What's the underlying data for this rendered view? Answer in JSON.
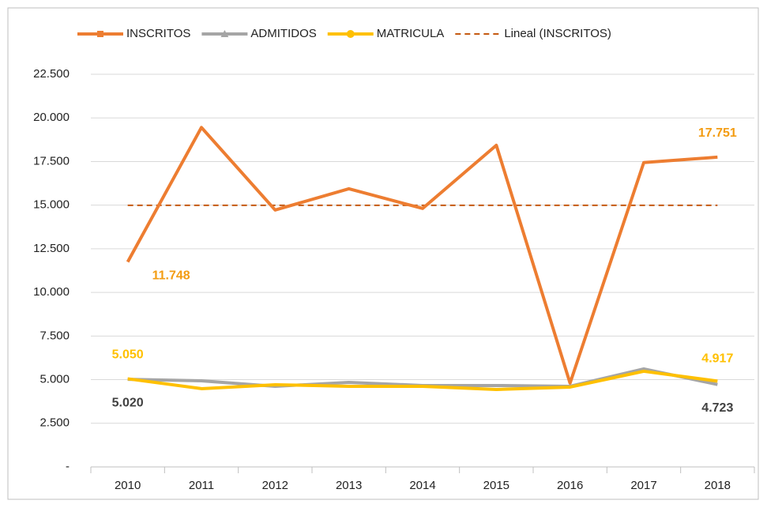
{
  "chart_data": {
    "type": "line",
    "categories": [
      "2010",
      "2011",
      "2012",
      "2013",
      "2014",
      "2015",
      "2016",
      "2017",
      "2018"
    ],
    "series": [
      {
        "name": "INSCRITOS",
        "color": "#ed7d31",
        "marker": "square",
        "values": [
          11748,
          19450,
          14720,
          15940,
          14810,
          18430,
          4800,
          17440,
          17751
        ],
        "value_labels": [
          "11.748",
          null,
          null,
          null,
          null,
          null,
          null,
          null,
          "17.751"
        ],
        "label_color": "#f39c12"
      },
      {
        "name": "ADMITIDOS",
        "color": "#a5a5a5",
        "marker": "triangle",
        "values": [
          5020,
          4937,
          4620,
          4846,
          4665,
          4665,
          4620,
          5616,
          4723
        ],
        "value_labels": [
          "5.020",
          null,
          null,
          null,
          null,
          null,
          null,
          null,
          "4.723"
        ],
        "label_color": "#404040"
      },
      {
        "name": "MATRICULA",
        "color": "#ffc000",
        "marker": "circle",
        "values": [
          5050,
          4484,
          4710,
          4620,
          4620,
          4438,
          4574,
          5480,
          4917
        ],
        "value_labels": [
          "5.050",
          null,
          null,
          null,
          null,
          null,
          null,
          null,
          "4.917"
        ],
        "label_color": "#ffc000"
      },
      {
        "name": "Lineal (INSCRITOS)",
        "color": "#c55a11",
        "dashed": true,
        "values": [
          14990,
          14990,
          14990,
          14990,
          14990,
          14990,
          14990,
          14990,
          14990
        ]
      }
    ],
    "ylim": [
      0,
      22500
    ],
    "yticks": [
      {
        "value": 0,
        "label": "-"
      },
      {
        "value": 2500,
        "label": "2.500"
      },
      {
        "value": 5000,
        "label": "5.000"
      },
      {
        "value": 7500,
        "label": "7.500"
      },
      {
        "value": 10000,
        "label": "10.000"
      },
      {
        "value": 12500,
        "label": "12.500"
      },
      {
        "value": 15000,
        "label": "15.000"
      },
      {
        "value": 17500,
        "label": "17.500"
      },
      {
        "value": 20000,
        "label": "20.000"
      },
      {
        "value": 22500,
        "label": "22.500"
      }
    ],
    "grid": true,
    "legend": "top"
  }
}
